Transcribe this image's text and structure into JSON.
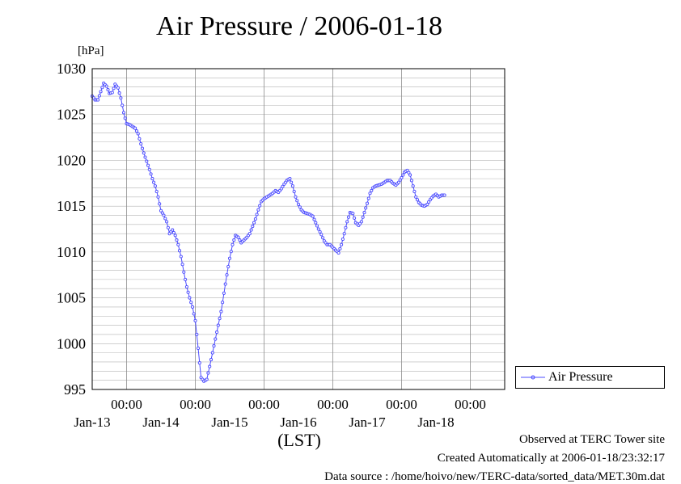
{
  "chart_data": {
    "type": "line",
    "title": "Air Pressure / 2006-01-18",
    "ylabel": "[hPa]",
    "xlabel": "(LST)",
    "ylim": [
      995,
      1030
    ],
    "yticks": [
      "995",
      "1000",
      "1005",
      "1010",
      "1015",
      "1020",
      "1025",
      "1030"
    ],
    "xlim_hours": [
      -12,
      132
    ],
    "xticks": [
      {
        "time": "00:00",
        "date": "Jan-13",
        "date_label": "Jan-13"
      },
      {
        "time": "00:00",
        "date": "Jan-14",
        "date_label": "Jan-14"
      },
      {
        "time": "00:00",
        "date": "Jan-15",
        "date_label": "Jan-15"
      },
      {
        "time": "00:00",
        "date": "Jan-16",
        "date_label": "Jan-16"
      },
      {
        "time": "00:00",
        "date": "Jan-17",
        "date_label": "Jan-17"
      },
      {
        "time": "00:00",
        "date": "Jan-18",
        "date_label": "Jan-18"
      }
    ],
    "grid": true,
    "legend_position": "right",
    "series": [
      {
        "name": "Air Pressure",
        "color": "#4b4bff",
        "points": [
          [
            "Jan-12 12:00",
            1027.0
          ],
          [
            "Jan-12 13:00",
            1026.6
          ],
          [
            "Jan-12 14:00",
            1026.6
          ],
          [
            "Jan-12 15:00",
            1027.5
          ],
          [
            "Jan-12 16:00",
            1028.4
          ],
          [
            "Jan-12 17:00",
            1028.1
          ],
          [
            "Jan-12 18:00",
            1027.3
          ],
          [
            "Jan-12 19:00",
            1027.4
          ],
          [
            "Jan-12 20:00",
            1028.3
          ],
          [
            "Jan-12 21:00",
            1027.9
          ],
          [
            "Jan-12 22:00",
            1026.8
          ],
          [
            "Jan-12 23:00",
            1025.2
          ],
          [
            "Jan-13 00:00",
            1024.0
          ],
          [
            "Jan-13 01:00",
            1023.9
          ],
          [
            "Jan-13 02:00",
            1023.7
          ],
          [
            "Jan-13 03:00",
            1023.5
          ],
          [
            "Jan-13 04:00",
            1022.9
          ],
          [
            "Jan-13 05:00",
            1021.8
          ],
          [
            "Jan-13 06:00",
            1020.8
          ],
          [
            "Jan-13 07:00",
            1019.9
          ],
          [
            "Jan-13 08:00",
            1019.0
          ],
          [
            "Jan-13 09:00",
            1018.0
          ],
          [
            "Jan-13 10:00",
            1017.2
          ],
          [
            "Jan-13 11:00",
            1016.0
          ],
          [
            "Jan-13 12:00",
            1014.5
          ],
          [
            "Jan-13 13:00",
            1014.0
          ],
          [
            "Jan-13 14:00",
            1013.3
          ],
          [
            "Jan-13 15:00",
            1012.0
          ],
          [
            "Jan-13 16:00",
            1012.4
          ],
          [
            "Jan-13 17:00",
            1011.8
          ],
          [
            "Jan-13 18:00",
            1010.8
          ],
          [
            "Jan-13 19:00",
            1009.5
          ],
          [
            "Jan-13 20:00",
            1007.8
          ],
          [
            "Jan-13 21:00",
            1006.2
          ],
          [
            "Jan-13 22:00",
            1005.0
          ],
          [
            "Jan-13 23:00",
            1004.0
          ],
          [
            "Jan-14 00:00",
            1002.5
          ],
          [
            "Jan-14 01:00",
            999.5
          ],
          [
            "Jan-14 02:00",
            996.3
          ],
          [
            "Jan-14 03:00",
            995.9
          ],
          [
            "Jan-14 04:00",
            996.1
          ],
          [
            "Jan-14 05:00",
            997.5
          ],
          [
            "Jan-14 06:00",
            999.0
          ],
          [
            "Jan-14 07:00",
            1000.5
          ],
          [
            "Jan-14 08:00",
            1002.0
          ],
          [
            "Jan-14 09:00",
            1003.5
          ],
          [
            "Jan-14 10:00",
            1005.5
          ],
          [
            "Jan-14 11:00",
            1007.5
          ],
          [
            "Jan-14 12:00",
            1009.3
          ],
          [
            "Jan-14 13:00",
            1010.8
          ],
          [
            "Jan-14 14:00",
            1011.8
          ],
          [
            "Jan-14 15:00",
            1011.6
          ],
          [
            "Jan-14 16:00",
            1011.0
          ],
          [
            "Jan-14 17:00",
            1011.3
          ],
          [
            "Jan-14 18:00",
            1011.6
          ],
          [
            "Jan-14 19:00",
            1012.0
          ],
          [
            "Jan-14 20:00",
            1012.8
          ],
          [
            "Jan-14 21:00",
            1013.6
          ],
          [
            "Jan-14 22:00",
            1014.6
          ],
          [
            "Jan-14 23:00",
            1015.5
          ],
          [
            "Jan-15 00:00",
            1015.8
          ],
          [
            "Jan-15 01:00",
            1016.0
          ],
          [
            "Jan-15 02:00",
            1016.2
          ],
          [
            "Jan-15 03:00",
            1016.4
          ],
          [
            "Jan-15 04:00",
            1016.7
          ],
          [
            "Jan-15 05:00",
            1016.5
          ],
          [
            "Jan-15 06:00",
            1016.9
          ],
          [
            "Jan-15 07:00",
            1017.4
          ],
          [
            "Jan-15 08:00",
            1017.8
          ],
          [
            "Jan-15 09:00",
            1018.0
          ],
          [
            "Jan-15 10:00",
            1017.2
          ],
          [
            "Jan-15 11:00",
            1016.0
          ],
          [
            "Jan-15 12:00",
            1015.2
          ],
          [
            "Jan-15 13:00",
            1014.6
          ],
          [
            "Jan-15 14:00",
            1014.3
          ],
          [
            "Jan-15 15:00",
            1014.2
          ],
          [
            "Jan-15 16:00",
            1014.1
          ],
          [
            "Jan-15 17:00",
            1013.9
          ],
          [
            "Jan-15 18:00",
            1013.2
          ],
          [
            "Jan-15 19:00",
            1012.5
          ],
          [
            "Jan-15 20:00",
            1011.9
          ],
          [
            "Jan-15 21:00",
            1011.2
          ],
          [
            "Jan-15 22:00",
            1010.8
          ],
          [
            "Jan-15 23:00",
            1010.8
          ],
          [
            "Jan-16 00:00",
            1010.5
          ],
          [
            "Jan-16 01:00",
            1010.2
          ],
          [
            "Jan-16 02:00",
            1009.9
          ],
          [
            "Jan-16 03:00",
            1010.8
          ],
          [
            "Jan-16 04:00",
            1012.0
          ],
          [
            "Jan-16 05:00",
            1013.3
          ],
          [
            "Jan-16 06:00",
            1014.3
          ],
          [
            "Jan-16 07:00",
            1014.2
          ],
          [
            "Jan-16 08:00",
            1013.2
          ],
          [
            "Jan-16 09:00",
            1012.9
          ],
          [
            "Jan-16 10:00",
            1013.3
          ],
          [
            "Jan-16 11:00",
            1014.3
          ],
          [
            "Jan-16 12:00",
            1015.3
          ],
          [
            "Jan-16 13:00",
            1016.4
          ],
          [
            "Jan-16 14:00",
            1017.0
          ],
          [
            "Jan-16 15:00",
            1017.2
          ],
          [
            "Jan-16 16:00",
            1017.3
          ],
          [
            "Jan-16 17:00",
            1017.4
          ],
          [
            "Jan-16 18:00",
            1017.6
          ],
          [
            "Jan-16 19:00",
            1017.8
          ],
          [
            "Jan-16 20:00",
            1017.8
          ],
          [
            "Jan-16 21:00",
            1017.5
          ],
          [
            "Jan-16 22:00",
            1017.3
          ],
          [
            "Jan-16 23:00",
            1017.6
          ],
          [
            "Jan-17 00:00",
            1018.1
          ],
          [
            "Jan-17 01:00",
            1018.7
          ],
          [
            "Jan-17 02:00",
            1018.9
          ],
          [
            "Jan-17 03:00",
            1018.4
          ],
          [
            "Jan-17 04:00",
            1017.2
          ],
          [
            "Jan-17 05:00",
            1016.0
          ],
          [
            "Jan-17 06:00",
            1015.4
          ],
          [
            "Jan-17 07:00",
            1015.1
          ],
          [
            "Jan-17 08:00",
            1015.0
          ],
          [
            "Jan-17 09:00",
            1015.2
          ],
          [
            "Jan-17 10:00",
            1015.7
          ],
          [
            "Jan-17 11:00",
            1016.1
          ],
          [
            "Jan-17 12:00",
            1016.3
          ],
          [
            "Jan-17 13:00",
            1016.0
          ],
          [
            "Jan-17 14:00",
            1016.2
          ],
          [
            "Jan-17 15:00",
            1016.2
          ]
        ]
      }
    ]
  },
  "footer": {
    "observed": "Observed at TERC Tower site",
    "created": "Created Automatically at 2006-01-18/23:32:17",
    "source": "Data source : /home/hoivo/new/TERC-data/sorted_data/MET.30m.dat"
  }
}
